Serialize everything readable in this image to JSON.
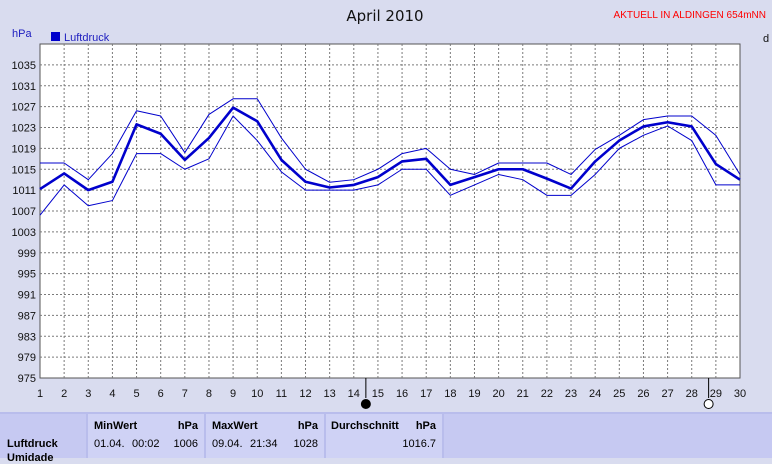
{
  "chart_data": {
    "type": "line",
    "title": "April 2010",
    "status_text": "AKTUELL IN ALDINGEN 654mNN",
    "ylabel": "hPa",
    "right_edge_label": "d",
    "ylim": [
      975,
      1039
    ],
    "yticks": [
      975,
      979,
      983,
      987,
      991,
      995,
      999,
      1003,
      1007,
      1011,
      1015,
      1019,
      1023,
      1027,
      1031,
      1035
    ],
    "x": [
      1,
      2,
      3,
      4,
      5,
      6,
      7,
      8,
      9,
      10,
      11,
      12,
      13,
      14,
      15,
      16,
      17,
      18,
      19,
      20,
      21,
      22,
      23,
      24,
      25,
      26,
      27,
      28,
      29,
      30
    ],
    "xlim": [
      1,
      30
    ],
    "grid": true,
    "legend_position": "top-left",
    "moon_markers": [
      {
        "day": 14.5,
        "phase": "new-moon"
      },
      {
        "day": 28.7,
        "phase": "full-moon"
      }
    ],
    "series": [
      {
        "name": "Luftdruck",
        "role": "mean",
        "color": "#0000cc",
        "values": [
          1011.2,
          1014.2,
          1011,
          1012.6,
          1023.6,
          1021.8,
          1016.8,
          1021,
          1026.8,
          1024.2,
          1016.8,
          1012.6,
          1011.5,
          1012,
          1013.5,
          1016.5,
          1017,
          1012,
          1013.5,
          1015,
          1015,
          1013.2,
          1011.3,
          1016.5,
          1020.5,
          1023.2,
          1024,
          1023.2,
          1016,
          1013
        ]
      },
      {
        "role": "max",
        "color": "#0000cc",
        "values": [
          1016.2,
          1016.2,
          1013,
          1018,
          1026.2,
          1025.2,
          1018.2,
          1025.5,
          1028.5,
          1028.5,
          1021,
          1015,
          1012.5,
          1013,
          1015,
          1018,
          1019,
          1015,
          1014,
          1016.2,
          1016.2,
          1016.2,
          1014,
          1018.8,
          1021.5,
          1024.5,
          1025.2,
          1025.2,
          1021.5,
          1014
        ]
      },
      {
        "role": "min",
        "color": "#0000cc",
        "values": [
          1006.2,
          1012,
          1008,
          1009,
          1018,
          1018,
          1015,
          1017,
          1025.2,
          1020.5,
          1014.5,
          1011,
          1011,
          1011,
          1012,
          1015,
          1015,
          1010,
          1012,
          1014,
          1013,
          1010,
          1010,
          1014,
          1019,
          1021.5,
          1023.3,
          1020.5,
          1012,
          1012
        ]
      }
    ]
  },
  "stats": {
    "row_labels": [
      "Luftdruck",
      "Umidade"
    ],
    "headers": {
      "min": "MinWert",
      "min_unit": "hPa",
      "max": "MaxWert",
      "max_unit": "hPa",
      "avg": "Durchschnitt",
      "avg_unit": "hPa"
    },
    "min": {
      "date": "01.04.",
      "time": "00:02",
      "value": "1006"
    },
    "max": {
      "date": "09.04.",
      "time": "21:34",
      "value": "1028"
    },
    "avg": {
      "value": "1016.7"
    }
  }
}
